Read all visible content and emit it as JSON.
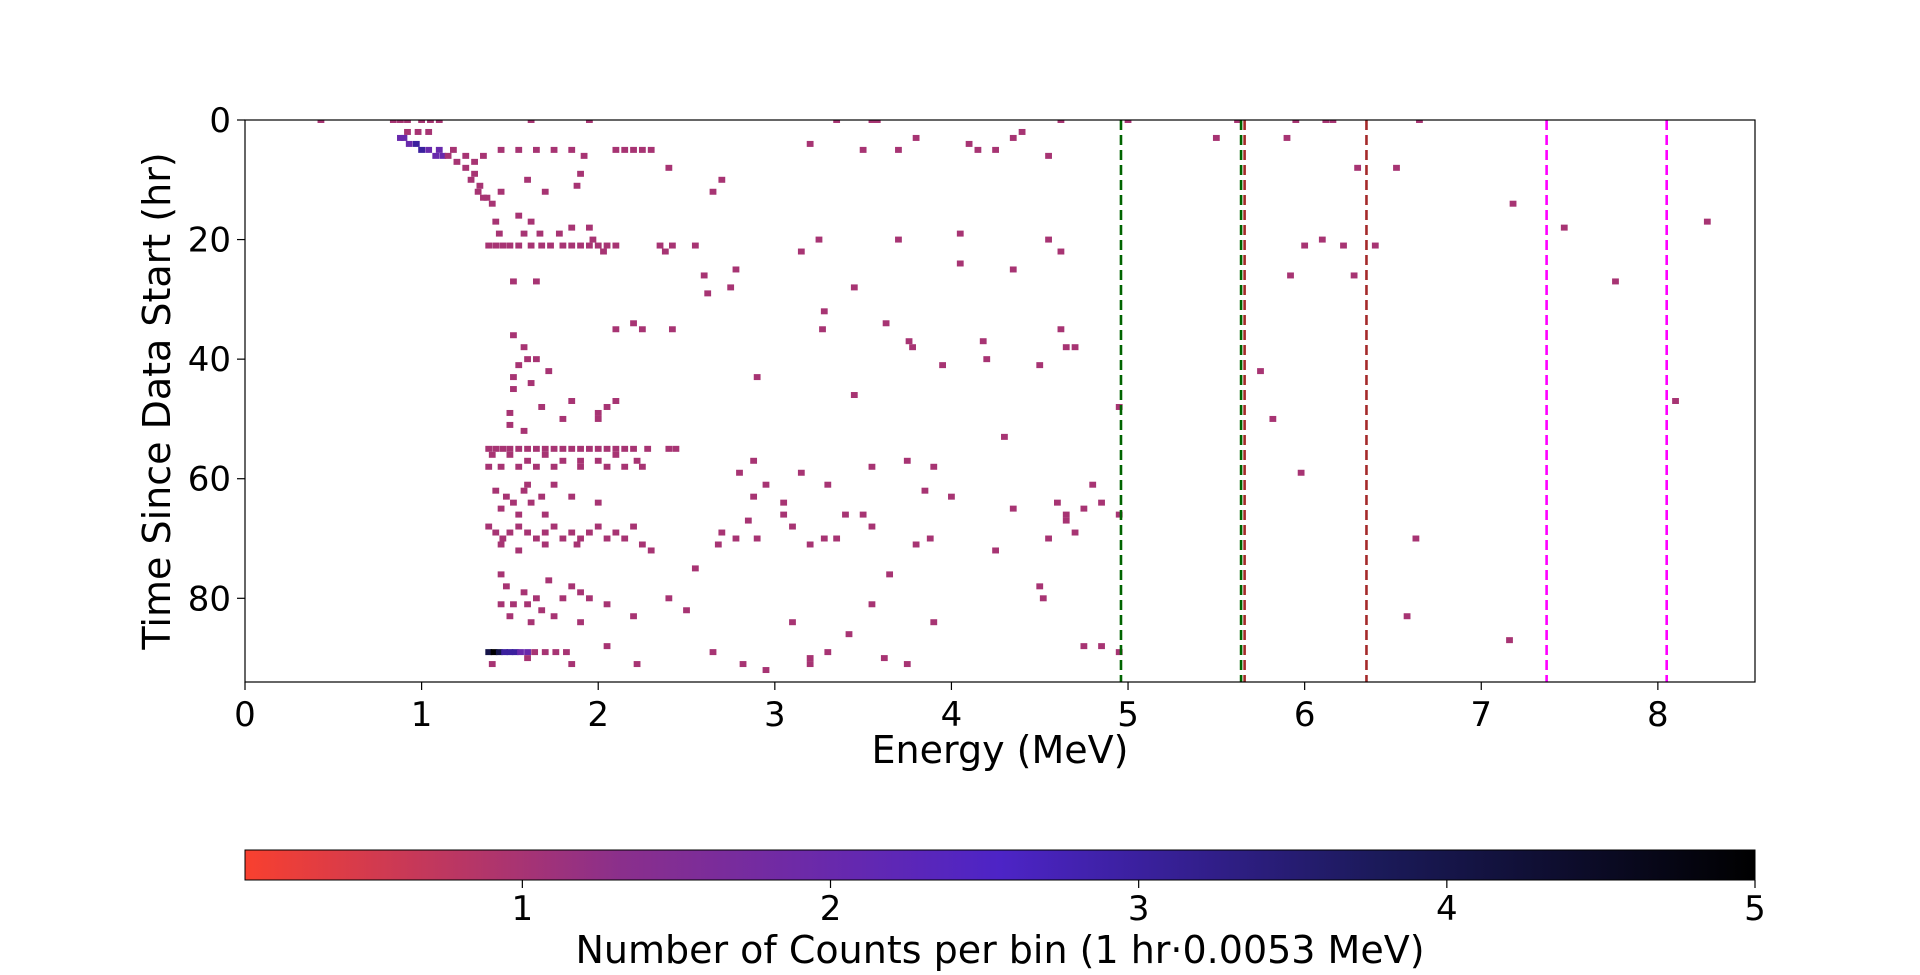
{
  "chart_data": {
    "type": "heatmap",
    "title": "",
    "xlabel": "Energy (MeV)",
    "ylabel": "Time Since Data Start (hr)",
    "xlim": [
      0,
      8.55
    ],
    "ylim": [
      94,
      0
    ],
    "xticks": [
      "0",
      "1",
      "2",
      "3",
      "4",
      "5",
      "6",
      "7",
      "8"
    ],
    "yticks": [
      "0",
      "20",
      "40",
      "60",
      "80"
    ],
    "grid": false,
    "colorbar": {
      "label": "Number of Counts per bin (1 hr·0.0053 MeV)",
      "range": [
        0.1,
        5
      ],
      "ticks": [
        "1",
        "2",
        "3",
        "4",
        "5"
      ],
      "colors": [
        "#f8402f",
        "#8a2f8c",
        "#4d24c6",
        "#1b1a5a",
        "#000000"
      ],
      "orientation": "horizontal"
    },
    "reference_lines": [
      {
        "x": 4.96,
        "color": "#006400",
        "style": "dashed"
      },
      {
        "x": 5.64,
        "color": "#006400",
        "style": "dashed"
      },
      {
        "x": 5.66,
        "color": "#a52a2a",
        "style": "dashed"
      },
      {
        "x": 6.35,
        "color": "#a52a2a",
        "style": "dashed"
      },
      {
        "x": 7.37,
        "color": "#ff00ff",
        "style": "dashed"
      },
      {
        "x": 8.05,
        "color": "#ff00ff",
        "style": "dashed"
      }
    ],
    "bins": [
      [
        0.43,
        0,
        1
      ],
      [
        0.84,
        0,
        1
      ],
      [
        0.88,
        0,
        1
      ],
      [
        0.92,
        0,
        1
      ],
      [
        1.0,
        0,
        1
      ],
      [
        1.05,
        0,
        1
      ],
      [
        1.1,
        0,
        1
      ],
      [
        1.62,
        0,
        1
      ],
      [
        1.95,
        0,
        1
      ],
      [
        3.35,
        0,
        1
      ],
      [
        3.55,
        0,
        1
      ],
      [
        3.58,
        0,
        1
      ],
      [
        4.62,
        0,
        1
      ],
      [
        5.0,
        0,
        1
      ],
      [
        5.62,
        0,
        1
      ],
      [
        5.95,
        0,
        1
      ],
      [
        6.12,
        0,
        1
      ],
      [
        6.16,
        0,
        1
      ],
      [
        6.65,
        0,
        1
      ],
      [
        0.92,
        2,
        1
      ],
      [
        0.98,
        2,
        1
      ],
      [
        1.04,
        2,
        1
      ],
      [
        4.4,
        2,
        1
      ],
      [
        4.35,
        3,
        1
      ],
      [
        5.5,
        3,
        1
      ],
      [
        5.9,
        3,
        1
      ],
      [
        3.2,
        4,
        1
      ],
      [
        3.8,
        3,
        1
      ],
      [
        4.1,
        4,
        1
      ],
      [
        0.88,
        3,
        2
      ],
      [
        0.9,
        3,
        2
      ],
      [
        0.93,
        4,
        2
      ],
      [
        0.97,
        4,
        3
      ],
      [
        1.0,
        5,
        3
      ],
      [
        1.04,
        5,
        2
      ],
      [
        1.08,
        6,
        2
      ],
      [
        1.12,
        6,
        2
      ],
      [
        1.15,
        6,
        1
      ],
      [
        1.1,
        5,
        2
      ],
      [
        1.18,
        5,
        1
      ],
      [
        1.2,
        7,
        1
      ],
      [
        1.25,
        6,
        1
      ],
      [
        1.3,
        7,
        1
      ],
      [
        1.35,
        6,
        1
      ],
      [
        1.45,
        5,
        1
      ],
      [
        1.55,
        5,
        1
      ],
      [
        1.65,
        5,
        1
      ],
      [
        1.75,
        5,
        1
      ],
      [
        1.85,
        5,
        1
      ],
      [
        1.92,
        6,
        1
      ],
      [
        2.1,
        5,
        1
      ],
      [
        2.15,
        5,
        1
      ],
      [
        2.2,
        5,
        1
      ],
      [
        2.3,
        5,
        1
      ],
      [
        2.25,
        5,
        1
      ],
      [
        4.15,
        5,
        1
      ],
      [
        4.25,
        5,
        1
      ],
      [
        3.5,
        5,
        1
      ],
      [
        3.7,
        5,
        1
      ],
      [
        4.55,
        6,
        1
      ],
      [
        1.25,
        8,
        1
      ],
      [
        1.3,
        9,
        1
      ],
      [
        1.28,
        10,
        1
      ],
      [
        1.33,
        11,
        1
      ],
      [
        1.32,
        12,
        1
      ],
      [
        1.37,
        13,
        1
      ],
      [
        1.4,
        14,
        1
      ],
      [
        1.35,
        13,
        1
      ],
      [
        1.45,
        12,
        1
      ],
      [
        1.6,
        10,
        1
      ],
      [
        1.7,
        12,
        1
      ],
      [
        1.9,
        9,
        1
      ],
      [
        1.88,
        11,
        1
      ],
      [
        1.55,
        16,
        1
      ],
      [
        1.62,
        17,
        1
      ],
      [
        2.7,
        10,
        1
      ],
      [
        2.4,
        8,
        1
      ],
      [
        2.65,
        12,
        1
      ],
      [
        1.42,
        17,
        1
      ],
      [
        1.44,
        19,
        1
      ],
      [
        1.58,
        19,
        1
      ],
      [
        1.67,
        19,
        1
      ],
      [
        1.78,
        19,
        1
      ],
      [
        1.85,
        18,
        1
      ],
      [
        1.95,
        18,
        1
      ],
      [
        1.38,
        21,
        1
      ],
      [
        1.42,
        21,
        1
      ],
      [
        1.46,
        21,
        1
      ],
      [
        1.5,
        21,
        1
      ],
      [
        1.55,
        21,
        1
      ],
      [
        1.62,
        21,
        1
      ],
      [
        1.68,
        21,
        1
      ],
      [
        1.73,
        21,
        1
      ],
      [
        1.8,
        21,
        1
      ],
      [
        1.85,
        21,
        1
      ],
      [
        1.9,
        21,
        1
      ],
      [
        1.95,
        21,
        1
      ],
      [
        2.0,
        21,
        1
      ],
      [
        2.05,
        21,
        1
      ],
      [
        2.1,
        21,
        1
      ],
      [
        2.35,
        21,
        1
      ],
      [
        2.42,
        21,
        1
      ],
      [
        2.55,
        21,
        1
      ],
      [
        1.97,
        20,
        1
      ],
      [
        2.03,
        22,
        1
      ],
      [
        2.38,
        22,
        1
      ],
      [
        2.6,
        26,
        1
      ],
      [
        2.78,
        25,
        1
      ],
      [
        2.75,
        28,
        1
      ],
      [
        2.62,
        29,
        1
      ],
      [
        3.15,
        22,
        1
      ],
      [
        3.25,
        20,
        1
      ],
      [
        3.45,
        28,
        1
      ],
      [
        3.7,
        20,
        1
      ],
      [
        4.05,
        19,
        1
      ],
      [
        4.05,
        24,
        1
      ],
      [
        4.35,
        25,
        1
      ],
      [
        4.55,
        20,
        1
      ],
      [
        4.62,
        22,
        1
      ],
      [
        2.2,
        34,
        1
      ],
      [
        2.25,
        35,
        1
      ],
      [
        2.42,
        35,
        1
      ],
      [
        2.1,
        35,
        1
      ],
      [
        3.28,
        32,
        1
      ],
      [
        3.27,
        35,
        1
      ],
      [
        3.63,
        34,
        1
      ],
      [
        3.76,
        37,
        1
      ],
      [
        3.78,
        38,
        1
      ],
      [
        4.18,
        37,
        1
      ],
      [
        4.62,
        35,
        1
      ],
      [
        4.65,
        38,
        1
      ],
      [
        1.52,
        27,
        1
      ],
      [
        1.65,
        27,
        1
      ],
      [
        1.52,
        36,
        1
      ],
      [
        1.58,
        38,
        1
      ],
      [
        1.6,
        40,
        1
      ],
      [
        1.55,
        41,
        1
      ],
      [
        1.52,
        43,
        1
      ],
      [
        1.62,
        44,
        1
      ],
      [
        1.52,
        45,
        1
      ],
      [
        1.68,
        48,
        1
      ],
      [
        1.5,
        49,
        1
      ],
      [
        1.65,
        40,
        1
      ],
      [
        1.72,
        42,
        1
      ],
      [
        1.5,
        51,
        1
      ],
      [
        1.58,
        52,
        1
      ],
      [
        1.8,
        50,
        1
      ],
      [
        1.85,
        47,
        1
      ],
      [
        2.0,
        49,
        1
      ],
      [
        2.05,
        48,
        1
      ],
      [
        2.1,
        47,
        1
      ],
      [
        2.0,
        50,
        1
      ],
      [
        2.9,
        43,
        1
      ],
      [
        3.45,
        46,
        1
      ],
      [
        3.95,
        41,
        1
      ],
      [
        4.2,
        40,
        1
      ],
      [
        4.5,
        41,
        1
      ],
      [
        4.7,
        38,
        1
      ],
      [
        4.3,
        53,
        1
      ],
      [
        4.95,
        48,
        1
      ],
      [
        1.38,
        55,
        1
      ],
      [
        1.42,
        55,
        1
      ],
      [
        1.46,
        55,
        1
      ],
      [
        1.5,
        55,
        1
      ],
      [
        1.55,
        55,
        1
      ],
      [
        1.6,
        55,
        1
      ],
      [
        1.65,
        55,
        1
      ],
      [
        1.7,
        55,
        1
      ],
      [
        1.75,
        55,
        1
      ],
      [
        1.8,
        55,
        1
      ],
      [
        1.85,
        55,
        1
      ],
      [
        1.9,
        55,
        1
      ],
      [
        1.95,
        55,
        1
      ],
      [
        2.0,
        55,
        1
      ],
      [
        2.05,
        55,
        1
      ],
      [
        2.1,
        55,
        1
      ],
      [
        2.15,
        55,
        1
      ],
      [
        2.2,
        55,
        1
      ],
      [
        2.28,
        55,
        1
      ],
      [
        2.4,
        55,
        1
      ],
      [
        2.44,
        55,
        1
      ],
      [
        1.4,
        56,
        1
      ],
      [
        1.5,
        56,
        1
      ],
      [
        1.6,
        57,
        1
      ],
      [
        1.7,
        56,
        1
      ],
      [
        1.8,
        57,
        1
      ],
      [
        1.9,
        57,
        1
      ],
      [
        2.0,
        57,
        1
      ],
      [
        2.1,
        56,
        1
      ],
      [
        2.22,
        57,
        1
      ],
      [
        1.38,
        58,
        1
      ],
      [
        1.45,
        58,
        1
      ],
      [
        1.55,
        58,
        1
      ],
      [
        1.65,
        58,
        1
      ],
      [
        1.75,
        58,
        1
      ],
      [
        1.9,
        58,
        1
      ],
      [
        2.05,
        58,
        1
      ],
      [
        2.15,
        58,
        1
      ],
      [
        2.25,
        58,
        1
      ],
      [
        1.42,
        62,
        1
      ],
      [
        1.48,
        63,
        1
      ],
      [
        1.52,
        64,
        1
      ],
      [
        1.58,
        62,
        1
      ],
      [
        1.62,
        64,
        1
      ],
      [
        1.68,
        63,
        1
      ],
      [
        1.75,
        61,
        1
      ],
      [
        1.55,
        66,
        1
      ],
      [
        1.45,
        65,
        1
      ],
      [
        1.6,
        61,
        1
      ],
      [
        1.85,
        63,
        1
      ],
      [
        2.0,
        64,
        1
      ],
      [
        1.7,
        66,
        1
      ],
      [
        1.38,
        68,
        1
      ],
      [
        1.42,
        69,
        1
      ],
      [
        1.46,
        70,
        1
      ],
      [
        1.5,
        69,
        1
      ],
      [
        1.55,
        68,
        1
      ],
      [
        1.6,
        69,
        1
      ],
      [
        1.65,
        70,
        1
      ],
      [
        1.7,
        69,
        1
      ],
      [
        1.75,
        68,
        1
      ],
      [
        1.8,
        70,
        1
      ],
      [
        1.85,
        69,
        1
      ],
      [
        1.9,
        70,
        1
      ],
      [
        1.95,
        69,
        1
      ],
      [
        2.0,
        68,
        1
      ],
      [
        2.05,
        70,
        1
      ],
      [
        2.1,
        69,
        1
      ],
      [
        2.15,
        70,
        1
      ],
      [
        2.2,
        68,
        1
      ],
      [
        2.25,
        71,
        1
      ],
      [
        2.3,
        72,
        1
      ],
      [
        1.45,
        71,
        1
      ],
      [
        1.55,
        72,
        1
      ],
      [
        1.7,
        71,
        1
      ],
      [
        1.88,
        71,
        1
      ],
      [
        2.7,
        69,
        1
      ],
      [
        2.78,
        70,
        1
      ],
      [
        2.68,
        71,
        1
      ],
      [
        2.85,
        67,
        1
      ],
      [
        2.55,
        75,
        1
      ],
      [
        2.9,
        70,
        1
      ],
      [
        3.1,
        68,
        1
      ],
      [
        3.28,
        70,
        1
      ],
      [
        3.4,
        66,
        1
      ],
      [
        3.5,
        66,
        1
      ],
      [
        3.55,
        68,
        1
      ],
      [
        3.35,
        70,
        1
      ],
      [
        3.2,
        71,
        1
      ],
      [
        3.05,
        66,
        1
      ],
      [
        2.88,
        57,
        1
      ],
      [
        2.8,
        59,
        1
      ],
      [
        2.88,
        63,
        1
      ],
      [
        2.95,
        61,
        1
      ],
      [
        3.05,
        64,
        1
      ],
      [
        3.15,
        59,
        1
      ],
      [
        3.3,
        61,
        1
      ],
      [
        3.55,
        58,
        1
      ],
      [
        3.85,
        62,
        1
      ],
      [
        3.75,
        57,
        1
      ],
      [
        3.9,
        58,
        1
      ],
      [
        4.0,
        63,
        1
      ],
      [
        3.8,
        71,
        1
      ],
      [
        3.65,
        76,
        1
      ],
      [
        3.88,
        70,
        1
      ],
      [
        4.25,
        72,
        1
      ],
      [
        4.35,
        65,
        1
      ],
      [
        4.6,
        64,
        1
      ],
      [
        4.65,
        66,
        1
      ],
      [
        4.7,
        69,
        1
      ],
      [
        4.8,
        61,
        1
      ],
      [
        4.85,
        64,
        1
      ],
      [
        4.95,
        66,
        1
      ],
      [
        4.65,
        67,
        1
      ],
      [
        4.55,
        70,
        1
      ],
      [
        4.75,
        65,
        1
      ],
      [
        1.45,
        76,
        1
      ],
      [
        1.48,
        78,
        1
      ],
      [
        1.58,
        79,
        1
      ],
      [
        1.65,
        80,
        1
      ],
      [
        1.72,
        77,
        1
      ],
      [
        1.45,
        81,
        1
      ],
      [
        1.52,
        81,
        1
      ],
      [
        1.6,
        81,
        1
      ],
      [
        1.68,
        82,
        1
      ],
      [
        1.8,
        80,
        1
      ],
      [
        1.85,
        78,
        1
      ],
      [
        1.9,
        79,
        1
      ],
      [
        1.95,
        80,
        1
      ],
      [
        2.05,
        81,
        1
      ],
      [
        1.5,
        83,
        1
      ],
      [
        1.62,
        84,
        1
      ],
      [
        1.75,
        83,
        1
      ],
      [
        1.9,
        84,
        1
      ],
      [
        2.2,
        83,
        1
      ],
      [
        2.4,
        80,
        1
      ],
      [
        2.5,
        82,
        1
      ],
      [
        3.1,
        84,
        1
      ],
      [
        3.55,
        81,
        1
      ],
      [
        3.42,
        86,
        1
      ],
      [
        3.9,
        84,
        1
      ],
      [
        4.5,
        78,
        1
      ],
      [
        4.52,
        80,
        1
      ],
      [
        1.38,
        89,
        4
      ],
      [
        1.41,
        89,
        5
      ],
      [
        1.44,
        89,
        4
      ],
      [
        1.47,
        89,
        3
      ],
      [
        1.5,
        89,
        3
      ],
      [
        1.53,
        89,
        3
      ],
      [
        1.56,
        89,
        2
      ],
      [
        1.6,
        89,
        2
      ],
      [
        1.64,
        89,
        1
      ],
      [
        1.7,
        89,
        1
      ],
      [
        1.76,
        89,
        1
      ],
      [
        1.82,
        89,
        1
      ],
      [
        1.4,
        91,
        1
      ],
      [
        1.6,
        90,
        1
      ],
      [
        1.85,
        91,
        1
      ],
      [
        2.05,
        88,
        1
      ],
      [
        2.22,
        91,
        1
      ],
      [
        2.65,
        89,
        1
      ],
      [
        2.82,
        91,
        1
      ],
      [
        2.95,
        92,
        1
      ],
      [
        3.2,
        91,
        1
      ],
      [
        3.2,
        90,
        1
      ],
      [
        3.3,
        89,
        1
      ],
      [
        3.62,
        90,
        1
      ],
      [
        3.75,
        91,
        1
      ],
      [
        4.75,
        88,
        1
      ],
      [
        4.85,
        88,
        1
      ],
      [
        4.95,
        89,
        1
      ],
      [
        6.3,
        8,
        1
      ],
      [
        6.52,
        8,
        1
      ],
      [
        7.18,
        14,
        1
      ],
      [
        7.47,
        18,
        1
      ],
      [
        7.76,
        27,
        1
      ],
      [
        8.28,
        17,
        1
      ],
      [
        8.1,
        47,
        1
      ],
      [
        7.16,
        87,
        1
      ],
      [
        6.58,
        83,
        1
      ],
      [
        6.63,
        70,
        1
      ],
      [
        6.1,
        20,
        1
      ],
      [
        6.0,
        21,
        1
      ],
      [
        6.22,
        21,
        1
      ],
      [
        6.4,
        21,
        1
      ],
      [
        6.28,
        26,
        1
      ],
      [
        5.98,
        59,
        1
      ],
      [
        5.92,
        26,
        1
      ],
      [
        5.75,
        42,
        1
      ],
      [
        5.82,
        50,
        1
      ]
    ]
  }
}
